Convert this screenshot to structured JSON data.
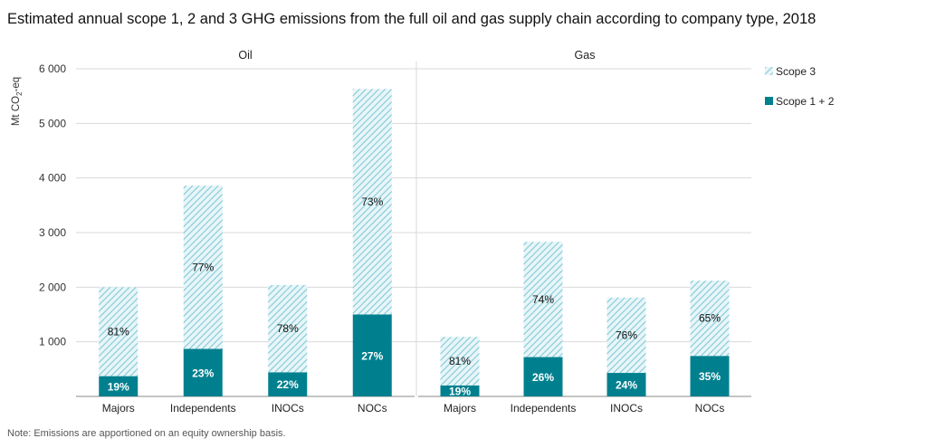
{
  "title": "Estimated annual scope 1, 2 and 3 GHG emissions from the full oil and gas supply chain according to company type, 2018",
  "note": "Note: Emissions are apportioned on an equity ownership basis.",
  "colors": {
    "scope12": "#00808f",
    "scope3_hatch": "#7fcbd8",
    "scope3_bg": "#e9f5f8",
    "grid": "#d9d9d9",
    "axis": "#888888"
  },
  "chart_data": {
    "type": "bar",
    "stacked": true,
    "ylabel_parts": [
      "Mt CO",
      "2",
      "-eq"
    ],
    "ylim": [
      0,
      6000
    ],
    "yticks": [
      1000,
      2000,
      3000,
      4000,
      5000,
      6000
    ],
    "ytick_labels": [
      "1 000",
      "2 000",
      "3 000",
      "4 000",
      "5 000",
      "6 000"
    ],
    "legend": [
      {
        "key": "scope3",
        "label": "Scope 3"
      },
      {
        "key": "scope12",
        "label": "Scope 1 + 2"
      }
    ],
    "panels": [
      {
        "title": "Oil",
        "categories": [
          "Majors",
          "Independents",
          "INOCs",
          "NOCs"
        ],
        "scope12": [
          370,
          870,
          440,
          1500
        ],
        "scope3": [
          1630,
          2990,
          1600,
          4130
        ],
        "scope12_labels": [
          "19%",
          "23%",
          "22%",
          "27%"
        ],
        "scope3_labels": [
          "81%",
          "77%",
          "78%",
          "73%"
        ]
      },
      {
        "title": "Gas",
        "categories": [
          "Majors",
          "Independents",
          "INOCs",
          "NOCs"
        ],
        "scope12": [
          200,
          720,
          430,
          740
        ],
        "scope3": [
          890,
          2110,
          1380,
          1380
        ],
        "scope12_labels": [
          "19%",
          "26%",
          "24%",
          "35%"
        ],
        "scope3_labels": [
          "81%",
          "74%",
          "76%",
          "65%"
        ]
      }
    ]
  }
}
